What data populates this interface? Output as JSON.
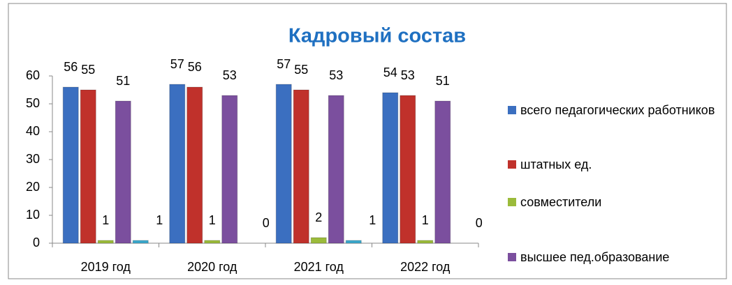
{
  "chart_data": {
    "type": "bar",
    "title": "Кадровый состав",
    "categories": [
      "2019 год",
      "2020 год",
      "2021 год",
      "2022 год"
    ],
    "series": [
      {
        "name": "всего педагогических работников",
        "color": "#3b6fc0",
        "values": [
          56,
          57,
          57,
          54
        ]
      },
      {
        "name": "штатных ед.",
        "color": "#c0312b",
        "values": [
          55,
          56,
          55,
          53
        ]
      },
      {
        "name": "совместители",
        "color": "#9bbb3b",
        "values": [
          1,
          1,
          2,
          1
        ]
      },
      {
        "name": "высшее пед.образование",
        "color": "#7b4f9e",
        "values": [
          51,
          53,
          53,
          51
        ]
      },
      {
        "color": "#3ca9cc",
        "values": [
          1,
          0,
          1,
          0
        ]
      }
    ],
    "ylim": [
      0,
      60
    ],
    "yticks": [
      0,
      10,
      20,
      30,
      40,
      50,
      60
    ],
    "legend": "right"
  }
}
